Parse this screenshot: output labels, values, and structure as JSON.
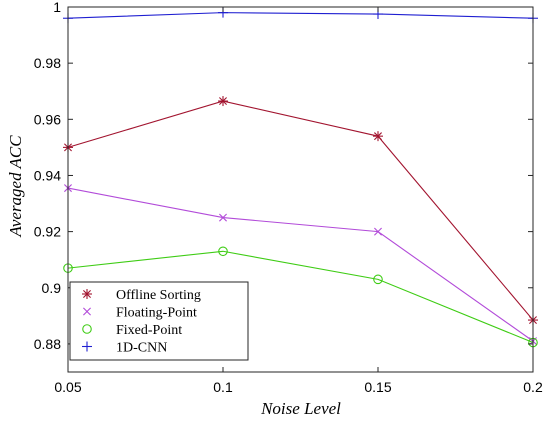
{
  "chart_data": {
    "type": "line",
    "title": "",
    "xlabel": "Noise Level",
    "ylabel": "Averaged ACC",
    "x": [
      0.05,
      0.1,
      0.15,
      0.2
    ],
    "xlim": [
      0.05,
      0.2
    ],
    "ylim": [
      0.87,
      1.0
    ],
    "xticks": [
      0.05,
      0.1,
      0.15,
      0.2
    ],
    "xtick_labels": [
      "0.05",
      "0.1",
      "0.15",
      "0.2"
    ],
    "yticks": [
      0.88,
      0.9,
      0.92,
      0.94,
      0.96,
      0.98,
      1.0
    ],
    "ytick_labels": [
      "0.88",
      "0.9",
      "0.92",
      "0.94",
      "0.96",
      "0.98",
      "1"
    ],
    "grid": false,
    "legend_position": "bottom-left",
    "series": [
      {
        "name": "Offline Sorting",
        "values": [
          0.95,
          0.9665,
          0.954,
          0.8885
        ],
        "color": "#a2142f",
        "marker": "asterisk"
      },
      {
        "name": "Floating-Point",
        "values": [
          0.9355,
          0.925,
          0.92,
          0.881
        ],
        "color": "#b24bd9",
        "marker": "x"
      },
      {
        "name": "Fixed-Point",
        "values": [
          0.907,
          0.913,
          0.903,
          0.8805
        ],
        "color": "#3ecc14",
        "marker": "circle"
      },
      {
        "name": "1D-CNN",
        "values": [
          0.996,
          0.998,
          0.9975,
          0.996
        ],
        "color": "#1f1fd1",
        "marker": "plus"
      }
    ]
  }
}
